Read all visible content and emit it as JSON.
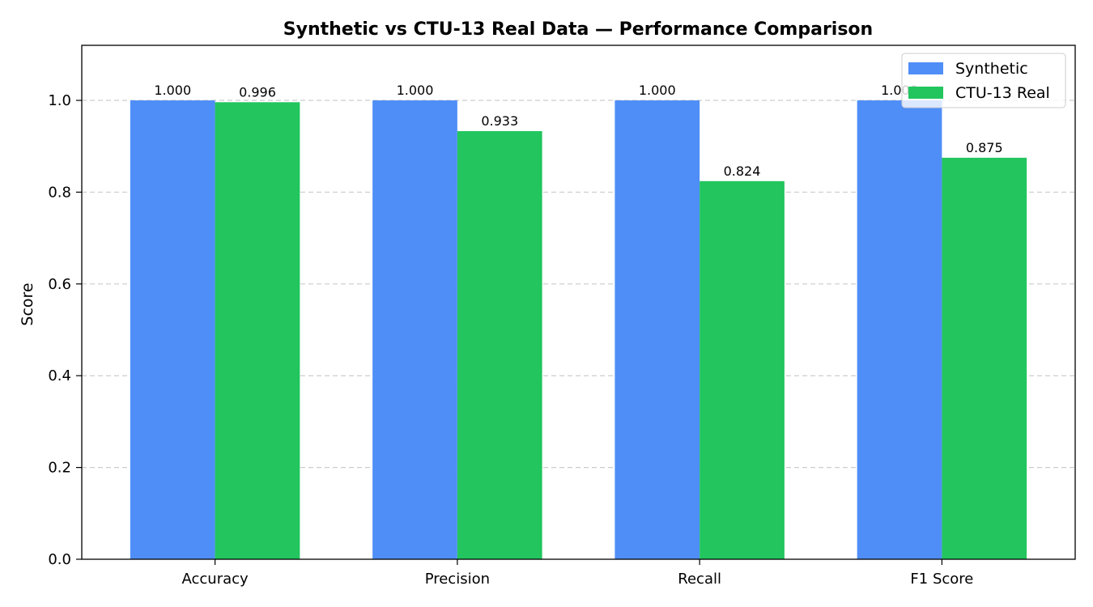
{
  "chart_data": {
    "type": "bar",
    "title": "Synthetic vs CTU-13 Real Data — Performance Comparison",
    "xlabel": "",
    "ylabel": "Score",
    "ylim": [
      0,
      1.12
    ],
    "yticks": [
      0.0,
      0.2,
      0.4,
      0.6,
      0.8,
      1.0
    ],
    "ytick_labels": [
      "0.0",
      "0.2",
      "0.4",
      "0.6",
      "0.8",
      "1.0"
    ],
    "categories": [
      "Accuracy",
      "Precision",
      "Recall",
      "F1 Score"
    ],
    "series": [
      {
        "name": "Synthetic",
        "color": "#4f8ef7",
        "values": [
          1.0,
          1.0,
          1.0,
          1.0
        ],
        "labels": [
          "1.000",
          "1.000",
          "1.000",
          "1.000"
        ]
      },
      {
        "name": "CTU-13 Real",
        "color": "#22c55e",
        "values": [
          0.996,
          0.933,
          0.824,
          0.875
        ],
        "labels": [
          "0.996",
          "0.933",
          "0.824",
          "0.875"
        ]
      }
    ],
    "grid": "y-dashed",
    "legend_position": "top-right"
  }
}
